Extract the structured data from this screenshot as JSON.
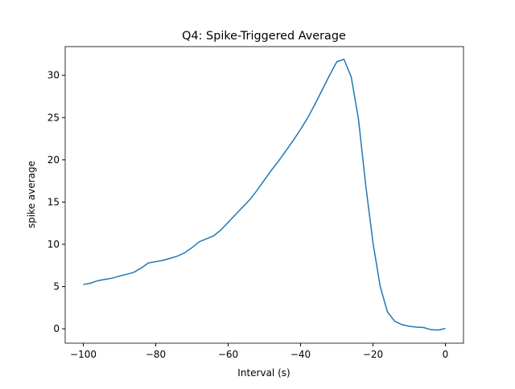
{
  "chart_data": {
    "type": "line",
    "title": "Q4: Spike-Triggered Average",
    "x_label": "Interval (s)",
    "y_label": "spike average",
    "x": [
      -100,
      -98,
      -96,
      -94,
      -92,
      -90,
      -88,
      -86,
      -84,
      -82,
      -80,
      -78,
      -76,
      -74,
      -72,
      -70,
      -68,
      -66,
      -64,
      -62,
      -60,
      -58,
      -56,
      -54,
      -52,
      -50,
      -48,
      -46,
      -44,
      -42,
      -40,
      -38,
      -36,
      -34,
      -32,
      -30,
      -28,
      -26,
      -24,
      -22,
      -20,
      -18,
      -16,
      -14,
      -12,
      -10,
      -8,
      -6,
      -4,
      -2,
      0
    ],
    "series": [
      {
        "color": "#1f77b4",
        "values": [
          5.25,
          5.4,
          5.7,
          5.85,
          6.0,
          6.25,
          6.45,
          6.7,
          7.2,
          7.8,
          7.95,
          8.1,
          8.35,
          8.6,
          9.0,
          9.6,
          10.3,
          10.65,
          11.0,
          11.7,
          12.6,
          13.5,
          14.4,
          15.3,
          16.4,
          17.6,
          18.8,
          19.9,
          21.1,
          22.3,
          23.6,
          25.0,
          26.6,
          28.3,
          30.0,
          31.6,
          31.9,
          29.8,
          24.8,
          17.0,
          10.2,
          5.0,
          2.0,
          0.9,
          0.5,
          0.3,
          0.2,
          0.15,
          -0.1,
          -0.15,
          0.05
        ]
      }
    ],
    "xlim": [
      -105,
      5
    ],
    "ylim": [
      -1.7,
      33.4
    ],
    "xticks": [
      {
        "value": -100,
        "label": "−100"
      },
      {
        "value": -80,
        "label": "−80"
      },
      {
        "value": -60,
        "label": "−60"
      },
      {
        "value": -40,
        "label": "−40"
      },
      {
        "value": -20,
        "label": "−20"
      },
      0
    ],
    "yticks": [
      0,
      5,
      10,
      15,
      20,
      25,
      30
    ]
  }
}
